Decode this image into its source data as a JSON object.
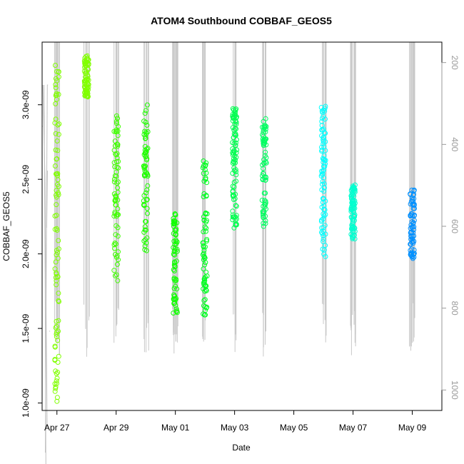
{
  "chart_data": {
    "type": "scatter",
    "title": "ATOM4 Southbound COBBAF_GEOS5",
    "xlabel": "Date",
    "ylabel": "COBBAF_GEOS5",
    "x_range_days_from_apr27": [
      -0.5,
      13.0
    ],
    "ylim": [
      9.5e-10,
      3.42e-09
    ],
    "y2lim": [
      1050,
      150
    ],
    "x_ticks": [
      {
        "label": "Apr 27",
        "x": "2016-04-27"
      },
      {
        "label": "Apr 29",
        "x": "2016-04-29"
      },
      {
        "label": "May 01",
        "x": "2016-05-01"
      },
      {
        "label": "May 03",
        "x": "2016-05-03"
      },
      {
        "label": "May 05",
        "x": "2016-05-05"
      },
      {
        "label": "May 07",
        "x": "2016-05-07"
      },
      {
        "label": "May 09",
        "x": "2016-05-09"
      }
    ],
    "y_ticks": [
      {
        "label": "1.0e-09",
        "value": 1e-09
      },
      {
        "label": "1.5e-09",
        "value": 1.5e-09
      },
      {
        "label": "2.0e-09",
        "value": 2e-09
      },
      {
        "label": "2.5e-09",
        "value": 2.5e-09
      },
      {
        "label": "3.0e-09",
        "value": 3e-09
      }
    ],
    "y2_ticks": [
      {
        "label": "200",
        "value": 200
      },
      {
        "label": "400",
        "value": 400
      },
      {
        "label": "600",
        "value": 600
      },
      {
        "label": "800",
        "value": 800
      },
      {
        "label": "1000",
        "value": 1000
      }
    ],
    "grid": false,
    "clusters": [
      {
        "date": "2016-04-27",
        "y_min": 9.9e-10,
        "y_max": 3.27e-09,
        "color": "#80ff00"
      },
      {
        "date": "2016-04-28",
        "y_min": 3.05e-09,
        "y_max": 3.33e-09,
        "color": "#80ff00"
      },
      {
        "date": "2016-04-29",
        "y_min": 1.81e-09,
        "y_max": 2.93e-09,
        "color": "#40ff00"
      },
      {
        "date": "2016-04-30",
        "y_min": 2.02e-09,
        "y_max": 3.01e-09,
        "color": "#20ff00"
      },
      {
        "date": "2016-05-01",
        "y_min": 1.6e-09,
        "y_max": 2.29e-09,
        "color": "#10ff00"
      },
      {
        "date": "2016-05-02",
        "y_min": 1.59e-09,
        "y_max": 2.63e-09,
        "color": "#00ff20"
      },
      {
        "date": "2016-05-03",
        "y_min": 2.17e-09,
        "y_max": 2.98e-09,
        "color": "#00ff50"
      },
      {
        "date": "2016-05-04",
        "y_min": 2.17e-09,
        "y_max": 2.91e-09,
        "color": "#00ff60"
      },
      {
        "date": "2016-05-06",
        "y_min": 1.97e-09,
        "y_max": 3.01e-09,
        "color": "#00ffff"
      },
      {
        "date": "2016-05-07",
        "y_min": 2.1e-09,
        "y_max": 2.48e-09,
        "color": "#00ffd0"
      },
      {
        "date": "2016-05-09",
        "y_min": 1.96e-09,
        "y_max": 2.44e-09,
        "color": "#0090ff"
      }
    ]
  }
}
